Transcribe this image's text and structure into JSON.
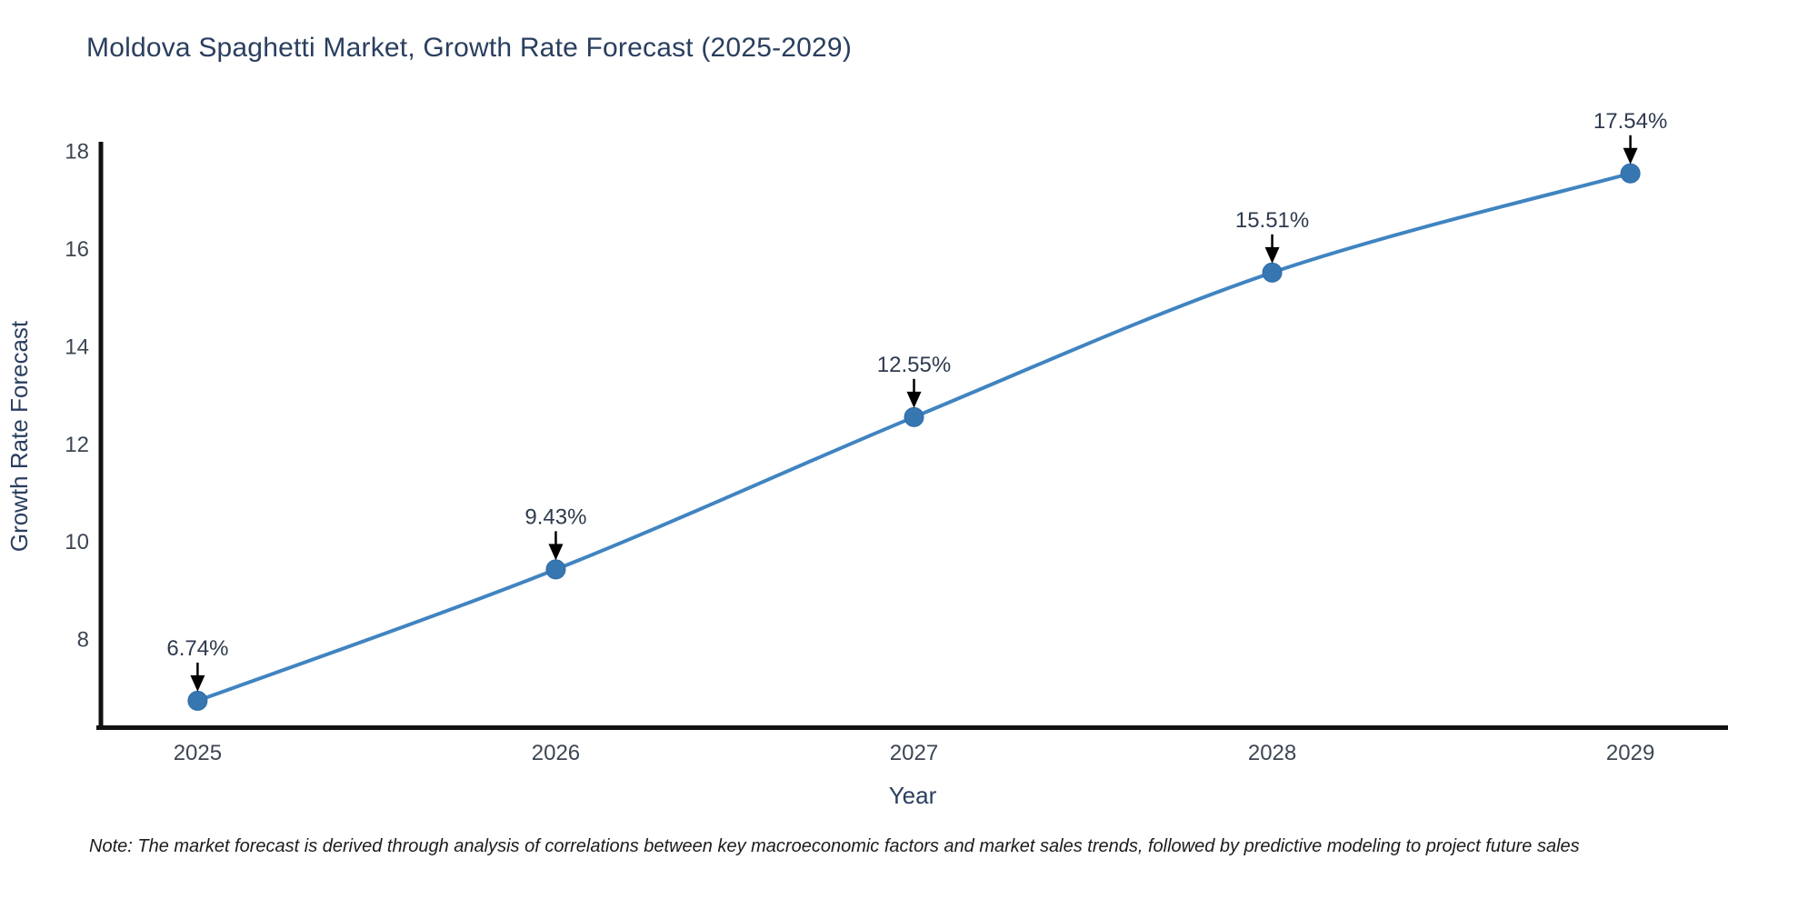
{
  "header": {
    "title": "Moldova Spaghetti Market, Growth Rate Forecast (2025-2029)"
  },
  "footnote": {
    "text": "Note: The market forecast is derived through analysis of correlations between key macroeconomic factors and market sales trends, followed by predictive modeling to project future sales"
  },
  "chart_data": {
    "type": "line",
    "title": "Moldova Spaghetti Market, Growth Rate Forecast (2025-2029)",
    "x": [
      2025,
      2026,
      2027,
      2028,
      2029
    ],
    "values": [
      6.74,
      9.43,
      12.55,
      15.51,
      17.54
    ],
    "point_labels": [
      "6.74%",
      "9.43%",
      "12.55%",
      "15.51%",
      "17.54%"
    ],
    "xticklabels": [
      "2025",
      "2026",
      "2027",
      "2028",
      "2029"
    ],
    "yticks": [
      8,
      10,
      12,
      14,
      16,
      18
    ],
    "xlabel": "Year",
    "ylabel": "Growth Rate Forecast",
    "xlim": [
      2024.73,
      2029.27
    ],
    "ylim": [
      6.18,
      18.15
    ],
    "grid": false,
    "legend": "none",
    "line_color": "#4084c1",
    "marker_color": "#3677b2",
    "marker_edge_color": "#2f6ba6",
    "arrow_color": "#000000",
    "axis_color": "#111111",
    "annotations_note": "black arrows point from each percentage label down to its data point"
  }
}
